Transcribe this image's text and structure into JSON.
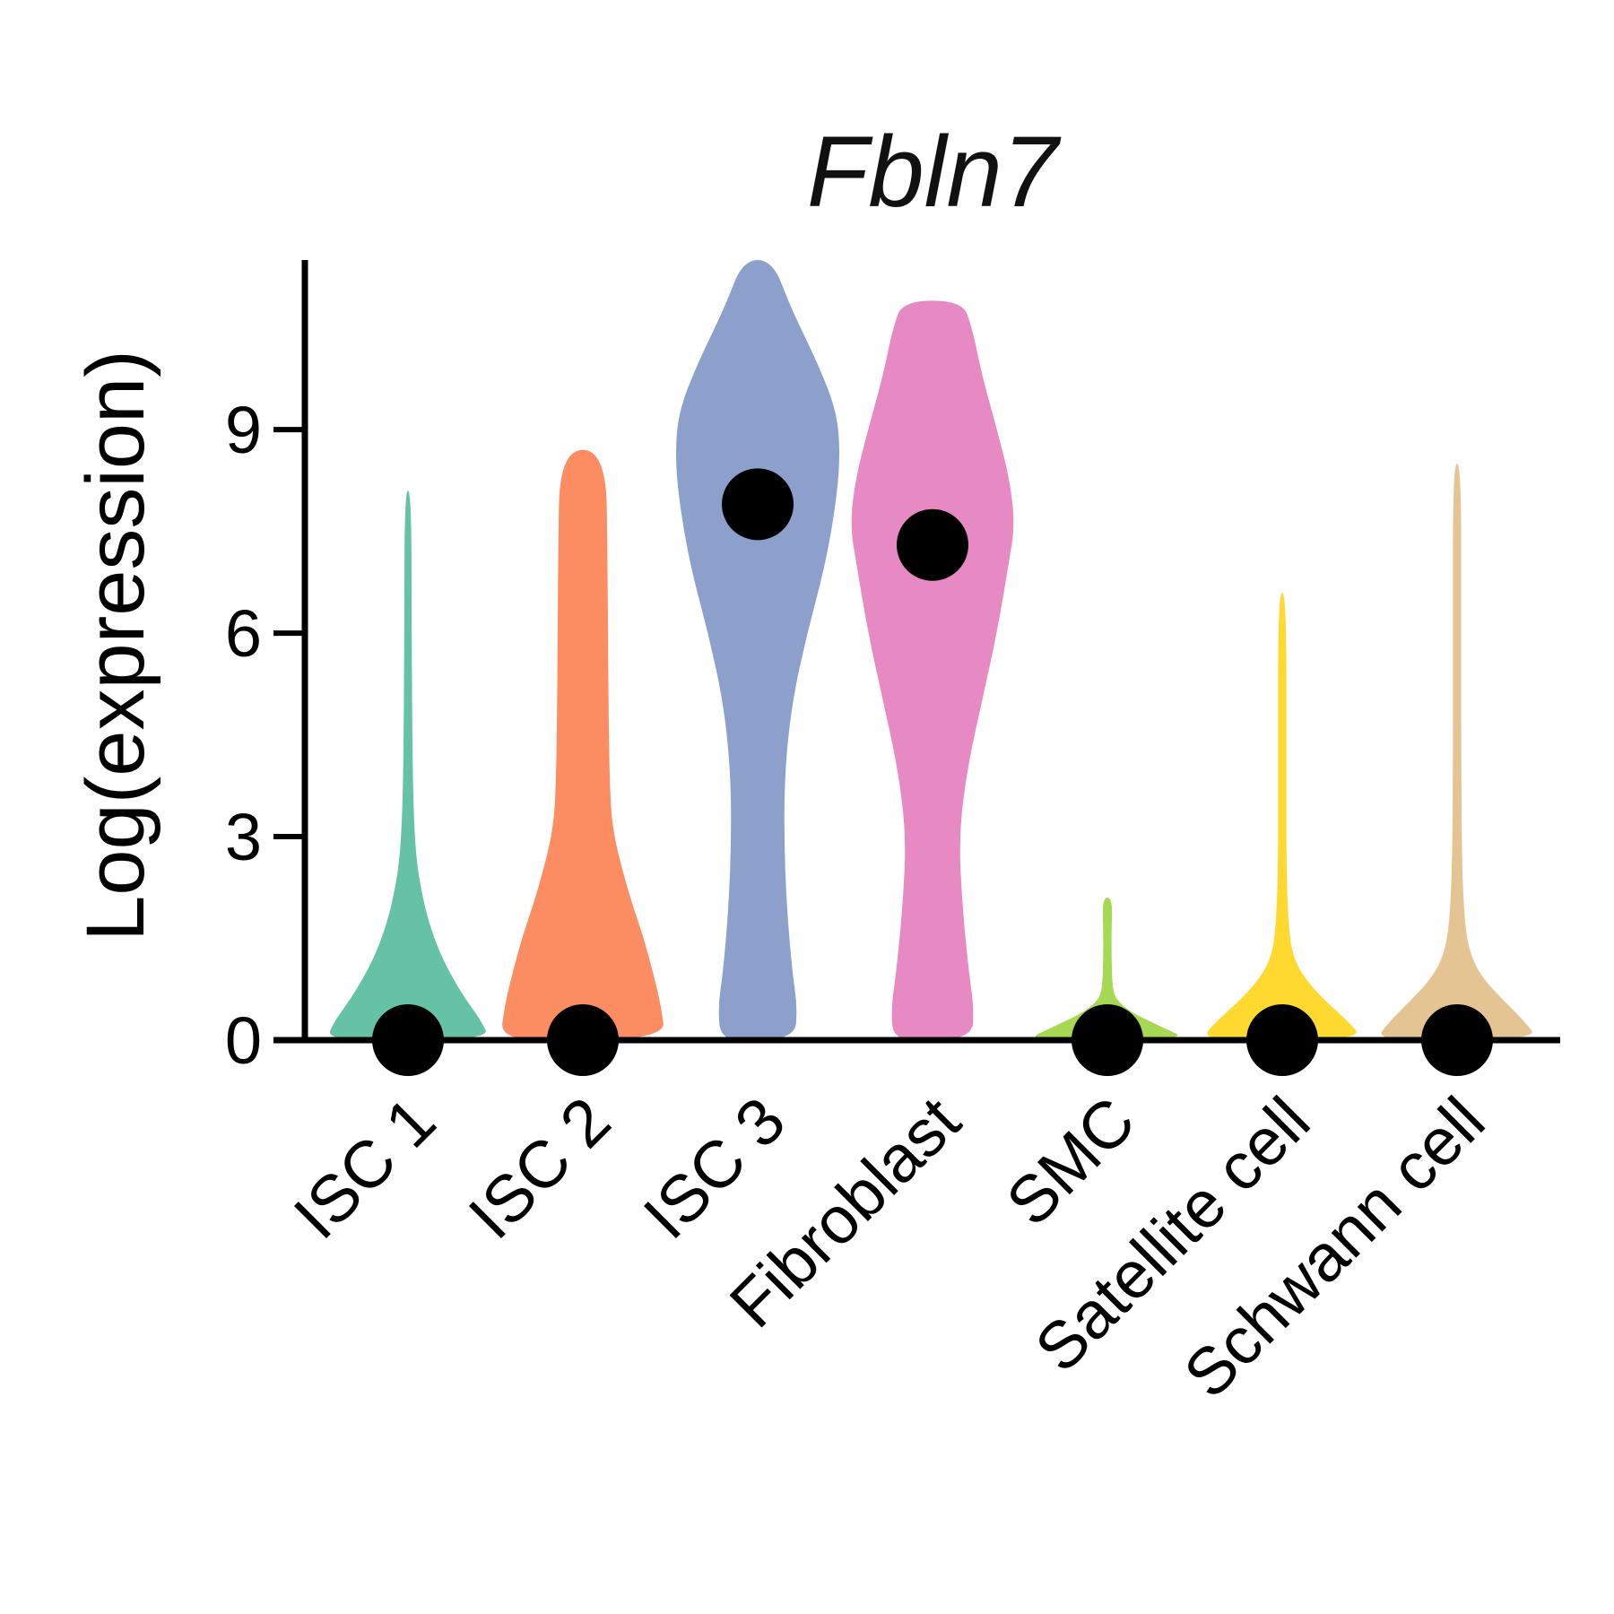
{
  "chart_data": {
    "type": "violin",
    "title": "Fbln7",
    "xlabel": "",
    "ylabel": "Log(expression)",
    "ylim": [
      0,
      11.5
    ],
    "yticks": [
      0,
      3,
      6,
      9
    ],
    "categories": [
      "ISC 1",
      "ISC 2",
      "ISC 3",
      "Fibroblast",
      "SMC",
      "Satellite cell",
      "Schwann cell"
    ],
    "colors": [
      "#66c2a5",
      "#fc8d62",
      "#8da0cb",
      "#e78ac3",
      "#a6d854",
      "#ffd92f",
      "#e5c494"
    ],
    "medians": [
      0,
      0,
      7.9,
      7.3,
      0,
      0,
      0
    ],
    "maxima": [
      8.1,
      8.7,
      11.5,
      10.9,
      2.1,
      6.6,
      8.5
    ],
    "minima": [
      0,
      0,
      0,
      0,
      0,
      0,
      0
    ],
    "density_profiles": [
      [
        [
          0,
          1.0
        ],
        [
          0.3,
          0.88
        ],
        [
          0.6,
          0.7
        ],
        [
          0.9,
          0.55
        ],
        [
          1.2,
          0.42
        ],
        [
          1.5,
          0.32
        ],
        [
          1.8,
          0.24
        ],
        [
          2.1,
          0.18
        ],
        [
          2.5,
          0.12
        ],
        [
          3.0,
          0.08
        ],
        [
          4.0,
          0.055
        ],
        [
          6.0,
          0.045
        ],
        [
          8.1,
          0.04
        ]
      ],
      [
        [
          0,
          1.0
        ],
        [
          0.5,
          0.95
        ],
        [
          1.0,
          0.85
        ],
        [
          1.5,
          0.74
        ],
        [
          2.0,
          0.6
        ],
        [
          2.5,
          0.48
        ],
        [
          3.0,
          0.38
        ],
        [
          3.5,
          0.33
        ],
        [
          5.0,
          0.31
        ],
        [
          7.0,
          0.3
        ],
        [
          8.7,
          0.28
        ]
      ],
      [
        [
          0,
          0.45
        ],
        [
          0.5,
          0.48
        ],
        [
          1.0,
          0.42
        ],
        [
          2.0,
          0.35
        ],
        [
          3.0,
          0.32
        ],
        [
          4.0,
          0.33
        ],
        [
          5.0,
          0.42
        ],
        [
          6.0,
          0.6
        ],
        [
          7.0,
          0.82
        ],
        [
          8.0,
          0.96
        ],
        [
          8.7,
          1.0
        ],
        [
          9.3,
          0.95
        ],
        [
          10.0,
          0.72
        ],
        [
          10.8,
          0.4
        ],
        [
          11.5,
          0.18
        ]
      ],
      [
        [
          0,
          0.48
        ],
        [
          0.5,
          0.5
        ],
        [
          1.0,
          0.44
        ],
        [
          2.0,
          0.36
        ],
        [
          3.0,
          0.32
        ],
        [
          4.0,
          0.42
        ],
        [
          5.0,
          0.6
        ],
        [
          6.0,
          0.78
        ],
        [
          7.0,
          0.92
        ],
        [
          7.6,
          1.0
        ],
        [
          8.3,
          0.93
        ],
        [
          9.0,
          0.78
        ],
        [
          9.8,
          0.6
        ],
        [
          10.5,
          0.48
        ],
        [
          10.9,
          0.36
        ]
      ],
      [
        [
          0,
          1.0
        ],
        [
          0.2,
          0.65
        ],
        [
          0.4,
          0.3
        ],
        [
          0.6,
          0.1
        ],
        [
          0.8,
          0.06
        ],
        [
          1.2,
          0.05
        ],
        [
          1.6,
          0.05
        ],
        [
          2.1,
          0.06
        ]
      ],
      [
        [
          0,
          1.0
        ],
        [
          0.3,
          0.78
        ],
        [
          0.6,
          0.5
        ],
        [
          0.9,
          0.28
        ],
        [
          1.2,
          0.14
        ],
        [
          1.6,
          0.08
        ],
        [
          2.5,
          0.05
        ],
        [
          4.0,
          0.05
        ],
        [
          6.6,
          0.05
        ]
      ],
      [
        [
          0,
          1.0
        ],
        [
          0.3,
          0.8
        ],
        [
          0.6,
          0.55
        ],
        [
          0.9,
          0.32
        ],
        [
          1.2,
          0.18
        ],
        [
          1.6,
          0.1
        ],
        [
          2.5,
          0.06
        ],
        [
          4.0,
          0.05
        ],
        [
          6.0,
          0.05
        ],
        [
          8.5,
          0.05
        ]
      ]
    ]
  }
}
